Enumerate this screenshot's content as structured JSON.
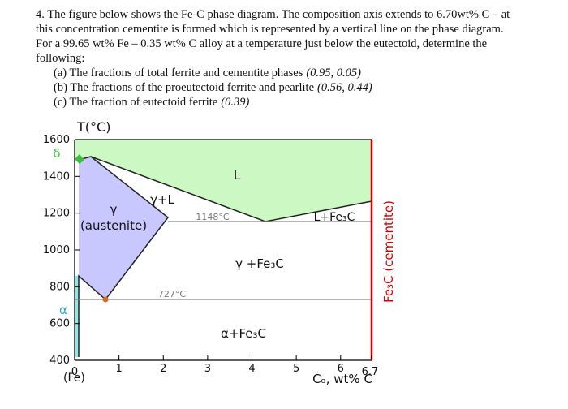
{
  "question": {
    "lines": [
      "4. The figure below shows the Fe-C phase diagram. The composition axis extends to 6.70wt% C – at",
      "this concentration cementite is formed which is represented by a vertical line on the phase diagram.",
      "For a 99.65 wt% Fe – 0.35 wt% C alloy at a temperature just below the eutectoid, determine the",
      "following:"
    ],
    "items": [
      {
        "text": "(a) The fractions of total ferrite and cementite phases",
        "answer": "(0.95, 0.05)"
      },
      {
        "text": "(b) The fractions of the proeutectoid ferrite and pearlite",
        "answer": "(0.56, 0.44)"
      },
      {
        "text": "(c) The fraction of eutectoid ferrite",
        "answer": "(0.39)"
      }
    ]
  },
  "figure": {
    "y_axis_title": "T(°C)",
    "y_ticks": [
      1600,
      1400,
      1200,
      1000,
      800,
      600,
      400
    ],
    "x_ticks": [
      0,
      1,
      2,
      3,
      4,
      5,
      6,
      6.7
    ],
    "x_origin_note": "(Fe)",
    "x_axis_title": "Cₒ, wt% C",
    "regions": {
      "liquid": "L",
      "gamma_liquid": "γ+L",
      "gamma": "γ",
      "austenite": "(austenite)",
      "liquid_cementite": "L+Fe₃C",
      "gamma_cementite": "γ +Fe₃C",
      "alpha_cementite": "α+Fe₃C",
      "alpha": "α",
      "delta": "δ"
    },
    "eutectic_temp": "1148°C",
    "eutectoid_temp": "727°C",
    "cementite_label": "Fe₃C (cementite)"
  }
}
